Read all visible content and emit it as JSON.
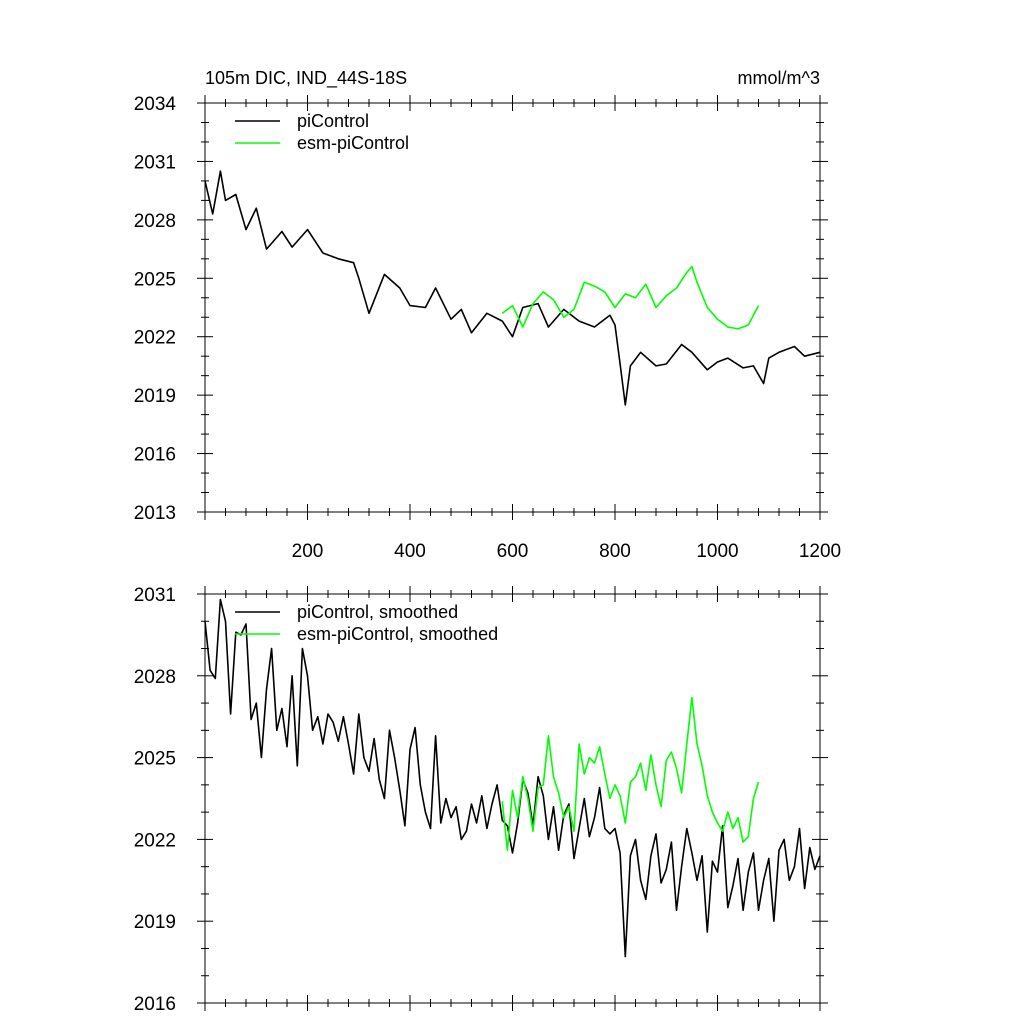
{
  "title": "105m DIC, IND_44S-18S",
  "units": "mmol/m^3",
  "colors": {
    "piControl": "#000000",
    "esm": "#00ff00",
    "axis": "#000000"
  },
  "chart_data": [
    {
      "type": "line",
      "panel": "top",
      "title": "105m DIC, IND_44S-18S",
      "units": "mmol/m^3",
      "xlim": [
        0,
        1200
      ],
      "ylim": [
        2013,
        2034
      ],
      "xticks": [
        200,
        400,
        600,
        800,
        1000,
        1200
      ],
      "xtick_labels": [
        "200",
        "400",
        "600",
        "800",
        "1000",
        "1200"
      ],
      "yticks": [
        2013,
        2016,
        2019,
        2022,
        2025,
        2028,
        2031,
        2034
      ],
      "ytick_labels": [
        "2013",
        "2016",
        "2019",
        "2022",
        "2025",
        "2028",
        "2031",
        "2034"
      ],
      "legend": [
        "piControl",
        "esm-piControl"
      ],
      "legend_position": "top-left",
      "series": [
        {
          "name": "piControl",
          "color": "#000000",
          "x": [
            0,
            15,
            30,
            40,
            60,
            80,
            100,
            120,
            150,
            170,
            200,
            230,
            260,
            290,
            300,
            320,
            350,
            380,
            400,
            430,
            450,
            480,
            500,
            520,
            550,
            580,
            600,
            620,
            650,
            670,
            700,
            730,
            760,
            790,
            800,
            810,
            820,
            830,
            850,
            880,
            900,
            930,
            950,
            980,
            1000,
            1020,
            1050,
            1070,
            1090,
            1100,
            1120,
            1150,
            1170,
            1200
          ],
          "y": [
            2030.0,
            2028.3,
            2030.5,
            2029.0,
            2029.3,
            2027.5,
            2028.6,
            2026.5,
            2027.4,
            2026.6,
            2027.5,
            2026.3,
            2026.0,
            2025.8,
            2025.0,
            2023.2,
            2025.2,
            2024.5,
            2023.6,
            2023.5,
            2024.5,
            2022.9,
            2023.4,
            2022.2,
            2023.2,
            2022.8,
            2022.0,
            2023.5,
            2023.7,
            2022.5,
            2023.4,
            2022.8,
            2022.5,
            2023.1,
            2022.6,
            2020.6,
            2018.5,
            2020.5,
            2021.2,
            2020.5,
            2020.6,
            2021.6,
            2021.2,
            2020.3,
            2020.7,
            2020.9,
            2020.4,
            2020.5,
            2019.6,
            2020.9,
            2021.2,
            2021.5,
            2021.0,
            2021.2
          ]
        },
        {
          "name": "esm-piControl",
          "color": "#00ff00",
          "x": [
            580,
            600,
            620,
            640,
            660,
            680,
            700,
            720,
            740,
            760,
            780,
            800,
            820,
            840,
            860,
            880,
            900,
            920,
            940,
            950,
            960,
            980,
            1000,
            1020,
            1040,
            1060,
            1080
          ],
          "y": [
            2023.2,
            2023.6,
            2022.5,
            2023.7,
            2024.3,
            2023.9,
            2023.0,
            2023.4,
            2024.8,
            2024.6,
            2024.3,
            2023.5,
            2024.2,
            2024.0,
            2024.7,
            2023.5,
            2024.1,
            2024.5,
            2025.3,
            2025.6,
            2024.8,
            2023.5,
            2022.9,
            2022.5,
            2022.4,
            2022.6,
            2023.6
          ]
        }
      ]
    },
    {
      "type": "line",
      "panel": "bottom",
      "xlim": [
        0,
        1200
      ],
      "ylim": [
        2016,
        2031
      ],
      "xticks": [
        200,
        400,
        600,
        800,
        1000,
        1200
      ],
      "yticks": [
        2016,
        2019,
        2022,
        2025,
        2028,
        2031
      ],
      "ytick_labels": [
        "2016",
        "2019",
        "2022",
        "2025",
        "2028",
        "2031"
      ],
      "legend": [
        "piControl, smoothed",
        "esm-piControl, smoothed"
      ],
      "legend_position": "top-left",
      "series": [
        {
          "name": "piControl, smoothed",
          "color": "#000000",
          "x": [
            0,
            10,
            20,
            30,
            40,
            50,
            60,
            70,
            80,
            90,
            100,
            110,
            120,
            130,
            140,
            150,
            160,
            170,
            180,
            190,
            200,
            210,
            220,
            230,
            240,
            250,
            260,
            270,
            280,
            290,
            300,
            310,
            320,
            330,
            340,
            350,
            360,
            370,
            380,
            390,
            400,
            410,
            420,
            430,
            440,
            450,
            460,
            470,
            480,
            490,
            500,
            510,
            520,
            530,
            540,
            550,
            560,
            570,
            580,
            590,
            600,
            610,
            620,
            630,
            640,
            650,
            660,
            670,
            680,
            690,
            700,
            710,
            720,
            730,
            740,
            750,
            760,
            770,
            780,
            790,
            800,
            810,
            820,
            830,
            840,
            850,
            860,
            870,
            880,
            890,
            900,
            910,
            920,
            930,
            940,
            950,
            960,
            970,
            980,
            990,
            1000,
            1010,
            1020,
            1030,
            1040,
            1050,
            1060,
            1070,
            1080,
            1090,
            1100,
            1110,
            1120,
            1130,
            1140,
            1150,
            1160,
            1170,
            1180,
            1190,
            1200
          ],
          "y": [
            2030.0,
            2028.2,
            2027.9,
            2030.8,
            2030.0,
            2026.6,
            2029.6,
            2029.5,
            2029.9,
            2026.4,
            2027.0,
            2025.0,
            2027.5,
            2029.0,
            2026.0,
            2026.8,
            2025.4,
            2028.0,
            2024.7,
            2029.0,
            2028.0,
            2026.0,
            2026.5,
            2025.5,
            2026.6,
            2026.3,
            2025.6,
            2026.5,
            2025.5,
            2024.4,
            2026.6,
            2025.0,
            2024.5,
            2025.7,
            2024.2,
            2023.5,
            2026.0,
            2025.0,
            2023.8,
            2022.5,
            2025.3,
            2026.1,
            2024.0,
            2023.0,
            2022.4,
            2025.8,
            2022.6,
            2023.5,
            2022.8,
            2023.2,
            2022.0,
            2022.3,
            2023.3,
            2022.6,
            2023.6,
            2022.4,
            2023.3,
            2024.0,
            2022.7,
            2022.5,
            2021.5,
            2022.6,
            2024.2,
            2023.7,
            2022.5,
            2024.3,
            2023.6,
            2022.0,
            2023.2,
            2021.6,
            2022.9,
            2023.3,
            2021.3,
            2022.4,
            2023.5,
            2022.1,
            2022.8,
            2023.9,
            2022.4,
            2022.2,
            2022.4,
            2021.5,
            2017.7,
            2021.4,
            2022.0,
            2020.5,
            2019.8,
            2021.4,
            2022.2,
            2020.4,
            2020.9,
            2021.9,
            2019.4,
            2021.0,
            2022.4,
            2021.5,
            2020.5,
            2021.4,
            2018.6,
            2021.2,
            2020.8,
            2022.5,
            2019.5,
            2020.3,
            2021.3,
            2019.4,
            2020.8,
            2021.5,
            2019.4,
            2020.5,
            2021.3,
            2019.0,
            2021.6,
            2022.0,
            2020.5,
            2021.0,
            2022.4,
            2020.2,
            2021.7,
            2020.9,
            2021.4
          ]
        },
        {
          "name": "esm-piControl, smoothed",
          "color": "#00ff00",
          "x": [
            580,
            590,
            600,
            610,
            620,
            630,
            640,
            650,
            660,
            670,
            680,
            690,
            700,
            710,
            720,
            730,
            740,
            750,
            760,
            770,
            780,
            790,
            800,
            810,
            820,
            830,
            840,
            850,
            860,
            870,
            880,
            890,
            900,
            910,
            920,
            930,
            940,
            950,
            960,
            970,
            980,
            990,
            1000,
            1010,
            1020,
            1030,
            1040,
            1050,
            1060,
            1070,
            1080
          ],
          "y": [
            2023.4,
            2021.6,
            2023.8,
            2022.8,
            2024.3,
            2023.5,
            2022.3,
            2023.9,
            2024.0,
            2025.8,
            2024.3,
            2023.7,
            2022.8,
            2023.2,
            2022.3,
            2025.5,
            2024.4,
            2025.0,
            2024.8,
            2025.4,
            2024.4,
            2023.5,
            2024.0,
            2023.6,
            2022.6,
            2024.1,
            2024.3,
            2024.8,
            2023.8,
            2025.1,
            2024.0,
            2023.2,
            2024.9,
            2025.2,
            2024.6,
            2023.7,
            2025.5,
            2027.2,
            2025.5,
            2024.7,
            2023.6,
            2023.0,
            2022.6,
            2022.3,
            2023.0,
            2022.4,
            2022.8,
            2021.9,
            2022.1,
            2023.5,
            2024.1
          ]
        }
      ]
    }
  ]
}
